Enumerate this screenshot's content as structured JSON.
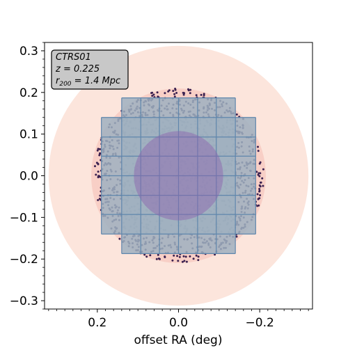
{
  "chart_data": {
    "type": "scatter",
    "title": "",
    "xlabel": "offset RA (deg)",
    "ylabel": "",
    "xlim": [
      0.33,
      -0.33
    ],
    "ylim": [
      -0.32,
      0.32
    ],
    "x_ticks": [
      0.2,
      0.0,
      -0.2
    ],
    "x_tick_labels": [
      "0.2",
      "0.0",
      "−0.2"
    ],
    "y_ticks": [
      0.3,
      0.2,
      0.1,
      0.0,
      -0.1,
      -0.2,
      -0.3
    ],
    "y_tick_labels": [
      "0.3",
      "0.2",
      "0.1",
      "0.0",
      "−0.1",
      "−0.2",
      "−0.3"
    ],
    "grid": false,
    "annotation": {
      "cluster": "CTRS01",
      "redshift": "z = 0.225",
      "radius_prefix": "r",
      "radius_sub": "200",
      "radius_suffix": " = 1.4 Mpc",
      "placement": "top-left"
    },
    "circles": [
      {
        "name": "outer-region",
        "cx": 0.0,
        "cy": 0.0,
        "r": 0.32,
        "color": "#fce5dc"
      },
      {
        "name": "middle-region",
        "cx": 0.0,
        "cy": 0.0,
        "r": 0.215,
        "color": "#f8cfc6"
      },
      {
        "name": "inner-region",
        "cx": 0.0,
        "cy": 0.0,
        "r": 0.11,
        "color": "#8b5fae"
      }
    ],
    "galaxies": {
      "shape": "disk",
      "cx": 0.0,
      "cy": 0.0,
      "r": 0.21,
      "count": 1600,
      "color": "#3a2150"
    },
    "tiles": {
      "color": "#9fb0bf",
      "edge_color": "#5f86ac",
      "x_edges": [
        0.19,
        0.14,
        0.093,
        0.047,
        0.0,
        -0.047,
        -0.093,
        -0.14,
        -0.19
      ],
      "y_edges": [
        0.187,
        0.14,
        0.093,
        0.047,
        0.0,
        -0.047,
        -0.093,
        -0.14,
        -0.187
      ],
      "footprint_wide": {
        "x": [
          0.19,
          -0.19
        ],
        "y": [
          0.14,
          -0.14
        ]
      },
      "footprint_tall": {
        "x": [
          0.14,
          -0.14
        ],
        "y": [
          0.187,
          -0.187
        ]
      }
    }
  }
}
